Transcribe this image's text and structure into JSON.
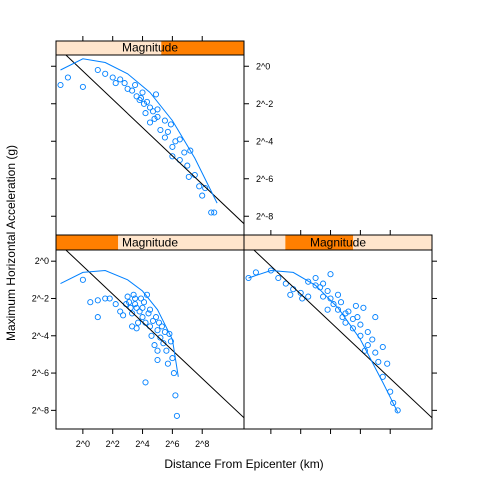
{
  "colors": {
    "points": "#0080ff",
    "smooth": "#0080ff",
    "fit_line": "#000000",
    "strip_bg": "#ffe5cc",
    "strip_bar": "#ff7f00",
    "frame": "#000000"
  },
  "chart_data": {
    "type": "scatter",
    "layout": "conditioned panels, 2 columns x 2 rows (lattice)",
    "xlabel": "Distance From Epicenter (km)",
    "ylabel": "Maximum Horizontal Acceleration (g)",
    "x_scale": "log2",
    "y_scale": "log2",
    "x_range_log2": [
      -1.8,
      10.8
    ],
    "y_range_log2": [
      -9.0,
      0.6
    ],
    "x_ticks": [
      {
        "value": 0,
        "label": "2^0"
      },
      {
        "value": 2,
        "label": "2^2"
      },
      {
        "value": 4,
        "label": "2^4"
      },
      {
        "value": 6,
        "label": "2^6"
      },
      {
        "value": 8,
        "label": "2^8"
      }
    ],
    "y_ticks": [
      {
        "value": 0,
        "label": "2^0"
      },
      {
        "value": -2,
        "label": "2^-2"
      },
      {
        "value": -4,
        "label": "2^-4"
      },
      {
        "value": -6,
        "label": "2^-6"
      },
      {
        "value": -8,
        "label": "2^-8"
      }
    ],
    "panels": [
      {
        "strip": "Magnitude",
        "magnitude_shingle": [
          0.0,
          0.33
        ],
        "fit_line": {
          "x": [
            -1.8,
            10.8
          ],
          "y": [
            1.1,
            -8.4
          ]
        },
        "smooth": [
          [
            -1.5,
            -1.2
          ],
          [
            0,
            -0.6
          ],
          [
            1.5,
            -0.5
          ],
          [
            3,
            -1.0
          ],
          [
            4,
            -1.6
          ],
          [
            5,
            -2.6
          ],
          [
            6,
            -4.2
          ],
          [
            6.4,
            -6.2
          ]
        ],
        "points": [
          [
            0,
            -1
          ],
          [
            0.5,
            -2.2
          ],
          [
            1,
            -2.1
          ],
          [
            1.5,
            -2.0
          ],
          [
            1.8,
            -2.0
          ],
          [
            2.2,
            -2.3
          ],
          [
            2.5,
            -2.7
          ],
          [
            2.7,
            -2.9
          ],
          [
            3.0,
            -1.9
          ],
          [
            3.1,
            -2.2
          ],
          [
            3.2,
            -2.5
          ],
          [
            3.3,
            -2.8
          ],
          [
            3.4,
            -1.8
          ],
          [
            3.5,
            -2.0
          ],
          [
            3.5,
            -2.3
          ],
          [
            3.6,
            -2.5
          ],
          [
            3.7,
            -3.3
          ],
          [
            3.8,
            -2.7
          ],
          [
            3.9,
            -2.0
          ],
          [
            4.0,
            -2.5
          ],
          [
            4.0,
            -3.0
          ],
          [
            4.1,
            -2.2
          ],
          [
            4.2,
            -3.3
          ],
          [
            4.3,
            -1.8
          ],
          [
            4.4,
            -2.8
          ],
          [
            4.5,
            -3.5
          ],
          [
            4.6,
            -4.0
          ],
          [
            4.7,
            -3.2
          ],
          [
            4.8,
            -4.5
          ],
          [
            4.9,
            -3.0
          ],
          [
            5.0,
            -3.7
          ],
          [
            5.0,
            -4.8
          ],
          [
            5.1,
            -3.3
          ],
          [
            5.2,
            -4.1
          ],
          [
            5.3,
            -3.5
          ],
          [
            5.4,
            -4.4
          ],
          [
            5.5,
            -3.8
          ],
          [
            5.6,
            -4.8
          ],
          [
            5.7,
            -5.5
          ],
          [
            5.8,
            -3.9
          ],
          [
            5.9,
            -4.3
          ],
          [
            6.0,
            -5.2
          ],
          [
            6.1,
            -6.0
          ],
          [
            6.2,
            -7.2
          ],
          [
            6.3,
            -8.3
          ],
          [
            5.0,
            -5.3
          ],
          [
            4.5,
            -2.6
          ],
          [
            3.3,
            -3.5
          ],
          [
            1.0,
            -3.0
          ],
          [
            2.9,
            -2.3
          ],
          [
            4.2,
            -6.5
          ],
          [
            3.6,
            -3.6
          ]
        ]
      },
      {
        "strip": "Magnitude",
        "magnitude_shingle": [
          0.22,
          0.58
        ],
        "fit_line": {
          "x": [
            -1.8,
            10.8
          ],
          "y": [
            1.1,
            -8.4
          ]
        },
        "smooth": [
          [
            -1.5,
            -0.9
          ],
          [
            0,
            -0.5
          ],
          [
            1.5,
            -0.6
          ],
          [
            3,
            -1.3
          ],
          [
            4.5,
            -2.5
          ],
          [
            6,
            -4.2
          ],
          [
            7.5,
            -6.5
          ],
          [
            8.5,
            -8.1
          ]
        ],
        "points": [
          [
            -1.5,
            -0.9
          ],
          [
            -1,
            -0.6
          ],
          [
            0,
            -0.5
          ],
          [
            0.5,
            -0.9
          ],
          [
            1,
            -1.2
          ],
          [
            1.5,
            -1.5
          ],
          [
            2,
            -1.7
          ],
          [
            2.5,
            -1.9
          ],
          [
            2.5,
            -1.1
          ],
          [
            3,
            -0.9
          ],
          [
            3,
            -1.3
          ],
          [
            3.5,
            -1.2
          ],
          [
            3.5,
            -1.9
          ],
          [
            3.8,
            -1.6
          ],
          [
            4,
            -0.7
          ],
          [
            4,
            -2.0
          ],
          [
            4.2,
            -2.3
          ],
          [
            4.5,
            -1.8
          ],
          [
            4.5,
            -2.6
          ],
          [
            4.7,
            -2.2
          ],
          [
            5,
            -2.8
          ],
          [
            5,
            -3.3
          ],
          [
            5.2,
            -2.7
          ],
          [
            5.5,
            -3.1
          ],
          [
            5.5,
            -3.6
          ],
          [
            5.8,
            -3.0
          ],
          [
            6,
            -3.4
          ],
          [
            6,
            -4.0
          ],
          [
            6.2,
            -2.5
          ],
          [
            6.5,
            -3.8
          ],
          [
            6.5,
            -4.5
          ],
          [
            6.8,
            -4.2
          ],
          [
            7,
            -3.0
          ],
          [
            7,
            -4.9
          ],
          [
            7.2,
            -5.4
          ],
          [
            7.5,
            -4.6
          ],
          [
            7.5,
            -6.2
          ],
          [
            7.8,
            -5.5
          ],
          [
            8,
            -7.0
          ],
          [
            8.2,
            -7.6
          ],
          [
            8.5,
            -8.0
          ],
          [
            3.3,
            -1.4
          ],
          [
            2.1,
            -2.0
          ],
          [
            4.8,
            -3.0
          ],
          [
            6.3,
            -4.8
          ],
          [
            5.7,
            -2.4
          ],
          [
            1.3,
            -1.8
          ],
          [
            3.8,
            -2.6
          ]
        ]
      },
      {
        "strip": "Magnitude",
        "magnitude_shingle": [
          0.56,
          1.0
        ],
        "fit_line": {
          "x": [
            -1.8,
            10.8
          ],
          "y": [
            1.1,
            -8.4
          ]
        },
        "smooth": [
          [
            -1.5,
            -0.2
          ],
          [
            0,
            0.4
          ],
          [
            1.5,
            0.2
          ],
          [
            3,
            -0.4
          ],
          [
            4.5,
            -1.4
          ],
          [
            6,
            -2.9
          ],
          [
            7.5,
            -4.9
          ],
          [
            9,
            -7.3
          ]
        ],
        "points": [
          [
            -1.5,
            -1
          ],
          [
            -1,
            -0.6
          ],
          [
            0,
            -1.1
          ],
          [
            1,
            -0.2
          ],
          [
            1.5,
            -0.4
          ],
          [
            2,
            -0.6
          ],
          [
            2.2,
            -0.9
          ],
          [
            2.5,
            -0.7
          ],
          [
            2.8,
            -0.9
          ],
          [
            3,
            -1.2
          ],
          [
            3.3,
            -1.3
          ],
          [
            3.5,
            -1.0
          ],
          [
            3.6,
            -1.6
          ],
          [
            3.8,
            -1.8
          ],
          [
            4,
            -1.4
          ],
          [
            4.1,
            -2.0
          ],
          [
            4.2,
            -2.5
          ],
          [
            4.3,
            -1.9
          ],
          [
            4.5,
            -2.2
          ],
          [
            4.5,
            -3.0
          ],
          [
            4.7,
            -2.4
          ],
          [
            4.8,
            -2.8
          ],
          [
            5,
            -2.3
          ],
          [
            5,
            -2.7
          ],
          [
            5.2,
            -3.4
          ],
          [
            5.5,
            -2.9
          ],
          [
            5.5,
            -3.8
          ],
          [
            5.7,
            -3.5
          ],
          [
            6,
            -4.3
          ],
          [
            6,
            -4.8
          ],
          [
            6.2,
            -4.0
          ],
          [
            6.5,
            -3.9
          ],
          [
            6.5,
            -5.0
          ],
          [
            6.8,
            -4.6
          ],
          [
            7,
            -5.3
          ],
          [
            7.2,
            -4.5
          ],
          [
            7.5,
            -5.8
          ],
          [
            7.8,
            -6.4
          ],
          [
            8,
            -6.9
          ],
          [
            8.2,
            -6.5
          ],
          [
            8.6,
            -7.8
          ],
          [
            8.8,
            -7.8
          ],
          [
            4.9,
            -1.5
          ],
          [
            3.9,
            -1.7
          ],
          [
            5.9,
            -3.1
          ],
          [
            7.1,
            -5.9
          ]
        ]
      }
    ]
  }
}
